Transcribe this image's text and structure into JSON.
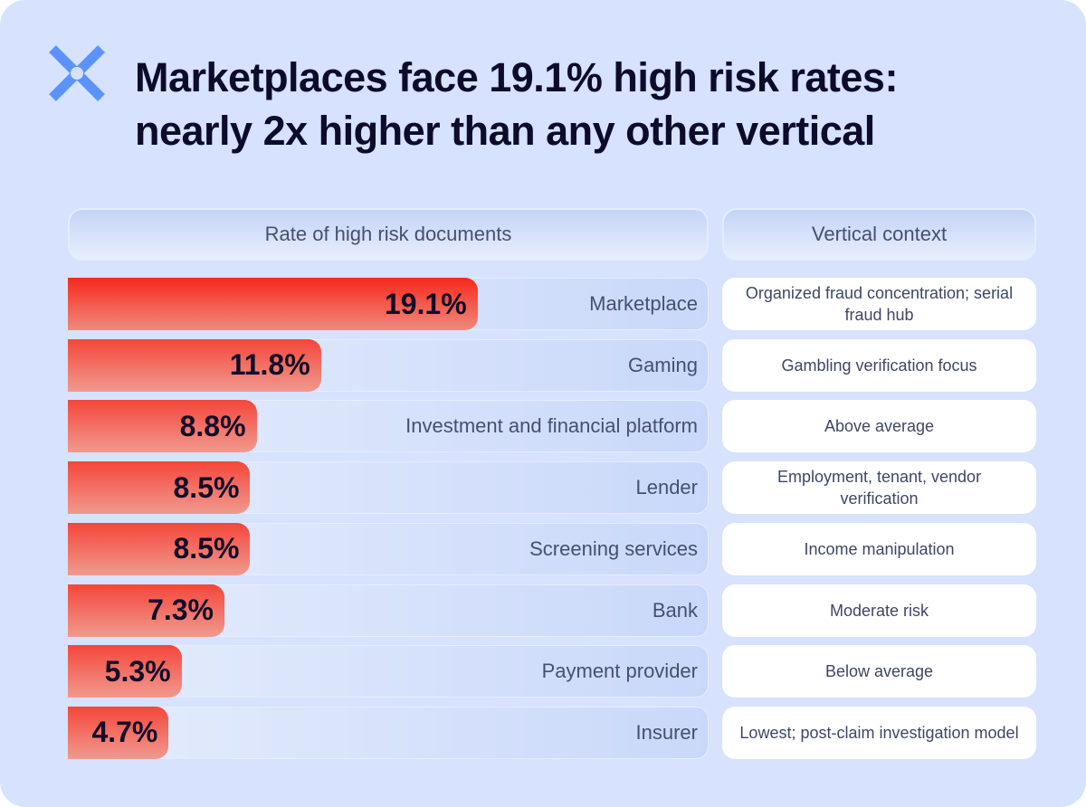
{
  "title_line1": "Marketplaces face 19.1% high risk rates:",
  "title_line2": "nearly 2x higher than any other vertical",
  "logo_icon": "x-cross-logo",
  "colors": {
    "background": "#d6e2fe",
    "bar": "#f5463a",
    "logo": "#5b93fa"
  },
  "chart_data": {
    "type": "bar",
    "orientation": "horizontal",
    "column_headers": [
      "Rate of high risk documents",
      "Vertical context"
    ],
    "categories": [
      "Marketplace",
      "Gaming",
      "Investment and financial platform",
      "Lender",
      "Screening services",
      "Bank",
      "Payment provider",
      "Insurer"
    ],
    "values": [
      19.1,
      11.8,
      8.8,
      8.5,
      8.5,
      7.3,
      5.3,
      4.7
    ],
    "value_labels": [
      "19.1%",
      "11.8%",
      "8.8%",
      "8.5%",
      "8.5%",
      "7.3%",
      "5.3%",
      "4.7%"
    ],
    "context": [
      "Organized fraud concentration; serial fraud hub",
      "Gambling verification focus",
      "Above average",
      "Employment, tenant, vendor verification",
      "Income manipulation",
      "Moderate risk",
      "Below average",
      "Lowest; post-claim investigation model"
    ],
    "unit": "%"
  }
}
